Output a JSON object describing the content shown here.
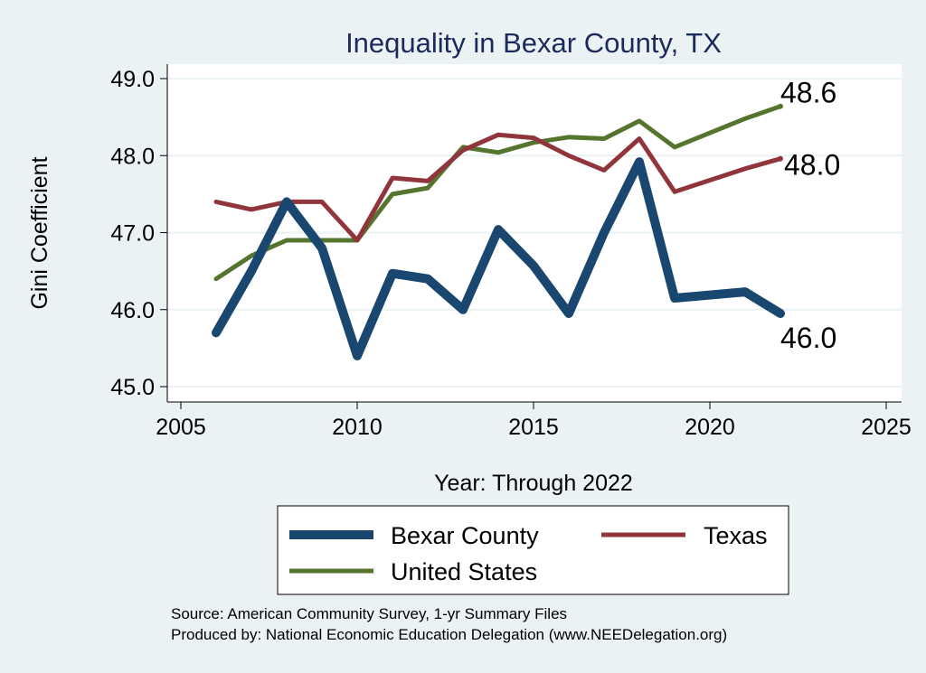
{
  "chart_data": {
    "type": "line",
    "title": "Inequality in Bexar County, TX",
    "xlabel": "Year: Through 2022",
    "ylabel": "Gini Coefficient",
    "xlim": [
      2005,
      2025
    ],
    "ylim": [
      45.0,
      49.0
    ],
    "xticks": [
      2005,
      2010,
      2015,
      2020,
      2025
    ],
    "yticks": [
      45.0,
      46.0,
      47.0,
      48.0,
      49.0
    ],
    "ytick_labels": [
      "45.0",
      "46.0",
      "47.0",
      "48.0",
      "49.0"
    ],
    "grid": true,
    "legend_position": "bottom",
    "series": [
      {
        "name": "Bexar County",
        "color": "#1a476f",
        "end_label": "46.0",
        "points": [
          [
            2006,
            45.7
          ],
          [
            2007,
            46.5
          ],
          [
            2008,
            47.4
          ],
          [
            2009,
            46.8
          ],
          [
            2010,
            45.4
          ],
          [
            2011,
            46.47
          ],
          [
            2012,
            46.4
          ],
          [
            2013,
            46.0
          ],
          [
            2014,
            47.04
          ],
          [
            2015,
            46.57
          ],
          [
            2016,
            45.95
          ],
          [
            2017,
            47.0
          ],
          [
            2018,
            47.92
          ],
          [
            2019,
            46.15
          ],
          [
            2021,
            46.23
          ],
          [
            2022,
            45.95
          ]
        ]
      },
      {
        "name": "Texas",
        "color": "#90353b",
        "end_label": "48.0",
        "points": [
          [
            2006,
            47.4
          ],
          [
            2007,
            47.3
          ],
          [
            2008,
            47.4
          ],
          [
            2009,
            47.4
          ],
          [
            2010,
            46.9
          ],
          [
            2011,
            47.71
          ],
          [
            2012,
            47.67
          ],
          [
            2013,
            48.07
          ],
          [
            2014,
            48.27
          ],
          [
            2015,
            48.23
          ],
          [
            2016,
            48.0
          ],
          [
            2017,
            47.81
          ],
          [
            2018,
            48.22
          ],
          [
            2019,
            47.53
          ],
          [
            2021,
            47.83
          ],
          [
            2022,
            47.96
          ]
        ]
      },
      {
        "name": "United States",
        "color": "#55752f",
        "end_label": "48.6",
        "points": [
          [
            2006,
            46.4
          ],
          [
            2007,
            46.7
          ],
          [
            2008,
            46.9
          ],
          [
            2009,
            46.9
          ],
          [
            2010,
            46.9
          ],
          [
            2011,
            47.5
          ],
          [
            2012,
            47.58
          ],
          [
            2013,
            48.11
          ],
          [
            2014,
            48.04
          ],
          [
            2015,
            48.17
          ],
          [
            2016,
            48.24
          ],
          [
            2017,
            48.22
          ],
          [
            2018,
            48.45
          ],
          [
            2019,
            48.11
          ],
          [
            2021,
            48.48
          ],
          [
            2022,
            48.64
          ]
        ]
      }
    ]
  },
  "source_note": "Source: American Community Survey, 1-yr Summary Files",
  "produced_note": "Produced by: National Economic Education Delegation (www.NEEDelegation.org)"
}
